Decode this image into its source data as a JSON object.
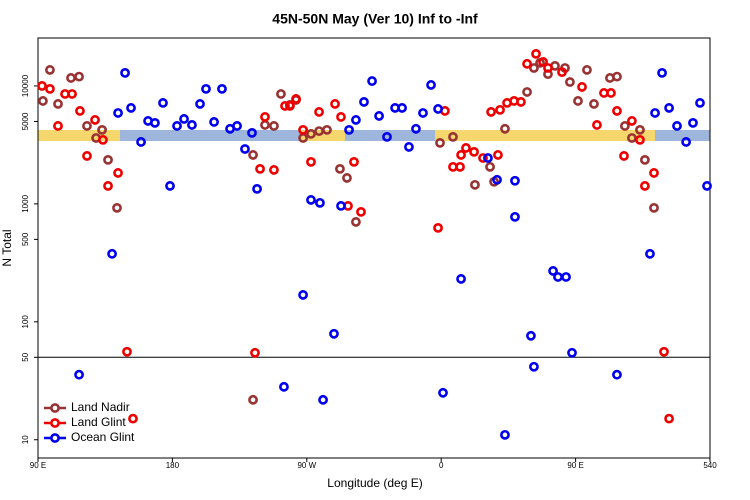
{
  "chart_data": {
    "type": "scatter",
    "title": "45N-50N May (Ver 10)   Inf to -Inf",
    "xlabel": "Longitude (deg E)",
    "ylabel": "N Total",
    "log_y": true,
    "legend": "lower left",
    "xlim": [
      90,
      540
    ],
    "xticks": [
      {
        "value": 90,
        "label": "90 E"
      },
      180,
      {
        "value": 270,
        "label": "90 W"
      },
      {
        "value": 360,
        "label": "0"
      },
      {
        "value": 450,
        "label": "90 E"
      },
      540
    ],
    "ylim": [
      7,
      25500
    ],
    "yticks": [
      10,
      50,
      100,
      500,
      1000,
      5000,
      10000
    ],
    "hline": 50,
    "series": [
      {
        "name": "Land Nadir",
        "color": "#993333",
        "x": [
          93.3,
          98,
          103.4,
          112.1,
          117.5,
          122.8,
          128.9,
          132.9,
          136.9,
          142.9,
          234,
          242,
          248,
          252.7,
          258.7,
          262.8,
          267.5,
          272.8,
          278.2,
          283.5,
          292.2,
          296.9,
          302.9,
          359.2,
          367.9,
          382.6,
          392.7,
          395.4,
          402.7,
          417.5,
          422.1,
          426.2,
          431.5,
          436.2,
          442.9,
          446.2,
          451.6,
          457.6,
          462.3,
          473,
          477.7,
          483,
          487.7,
          493.1,
          496.4,
          502.5,
          234
        ],
        "values": [
          7460,
          13670,
          7040,
          11690,
          12000,
          4580,
          3620,
          4240,
          2360,
          925,
          2600,
          4670,
          4580,
          8550,
          6900,
          7610,
          3620,
          3920,
          4140,
          4240,
          1980,
          1660,
          703,
          3290,
          3700,
          1450,
          2060,
          1540,
          4330,
          8890,
          14200,
          15700,
          12600,
          14800,
          14200,
          10800,
          7460,
          13670,
          7040,
          11690,
          12000,
          4580,
          3620,
          4240,
          2360,
          925,
          21.8
        ]
      },
      {
        "name": "Land Glint",
        "color": "#ee0000",
        "x": [
          92.7,
          98,
          103.4,
          108.1,
          112.8,
          118.1,
          122.8,
          128.2,
          133.5,
          136.9,
          143.6,
          149.6,
          153.6,
          235.3,
          238.7,
          242,
          248,
          255.4,
          258.7,
          262.8,
          267.5,
          272.8,
          278.2,
          288.9,
          292.9,
          297.6,
          301.6,
          306.3,
          357.9,
          362.5,
          367.9,
          372.6,
          373.3,
          376.6,
          382,
          388,
          393.4,
          398,
          399.4,
          404.1,
          408.8,
          413.4,
          417.5,
          423.5,
          428.2,
          431.5,
          440.9,
          454.3,
          464.3,
          469,
          473.7,
          477.7,
          482.4,
          487.7,
          493.1,
          496.4,
          502.5,
          509.2,
          512.6
        ],
        "values": [
          10000,
          9440,
          4580,
          8550,
          8550,
          6140,
          2550,
          5150,
          3490,
          1420,
          1830,
          55.7,
          15.1,
          54.6,
          1980,
          5460,
          1940,
          6770,
          6770,
          7760,
          4240,
          2270,
          6020,
          7040,
          5460,
          961,
          2270,
          855,
          626,
          6140,
          2060,
          2060,
          2600,
          2980,
          2760,
          2450,
          6020,
          2600,
          6270,
          7180,
          7460,
          7320,
          15400,
          18700,
          16000,
          14200,
          13100,
          9810,
          4670,
          8720,
          8720,
          6140,
          2550,
          5050,
          3490,
          1420,
          1830,
          55.7,
          15.1
        ]
      },
      {
        "name": "Ocean Glint",
        "color": "#0000ee",
        "x": [
          117.5,
          139.6,
          143.6,
          148.3,
          152.3,
          159,
          163.7,
          168.3,
          173.7,
          178.4,
          183.1,
          187.8,
          193.1,
          198.5,
          202.5,
          207.9,
          213.2,
          218.6,
          223.3,
          228.6,
          233.3,
          236.7,
          254.7,
          267.5,
          272.8,
          278.8,
          280.9,
          288.2,
          292.9,
          298.3,
          302.9,
          308.3,
          313.7,
          318.4,
          323.7,
          329.1,
          333.8,
          338.4,
          343.1,
          347.8,
          353.2,
          357.9,
          361.2,
          373.3,
          391.3,
          397.4,
          402.7,
          409.4,
          409.4,
          420.1,
          422.1,
          434.9,
          438.2,
          443.6,
          447.6,
          477.7,
          499.8,
          503.2,
          507.9,
          512.6,
          517.9,
          524,
          528.6,
          533.3,
          538
        ],
        "values": [
          35.6,
          377,
          5900,
          12900,
          6510,
          3350,
          5050,
          4860,
          7180,
          1420,
          4580,
          5250,
          4670,
          7040,
          9440,
          4950,
          9440,
          4330,
          4580,
          2920,
          4000,
          1340,
          28.1,
          169,
          1080,
          1020,
          21.8,
          79.1,
          961,
          4240,
          5150,
          7320,
          11000,
          5570,
          3700,
          6510,
          6510,
          3040,
          4330,
          5900,
          10200,
          6380,
          25.0,
          231,
          2450,
          1600,
          11.0,
          1570,
          776,
          76.1,
          41.6,
          270,
          240,
          240,
          54.6,
          35.6,
          377,
          5900,
          12900,
          6510,
          4580,
          3350,
          4860,
          7180,
          1420
        ]
      }
    ]
  }
}
